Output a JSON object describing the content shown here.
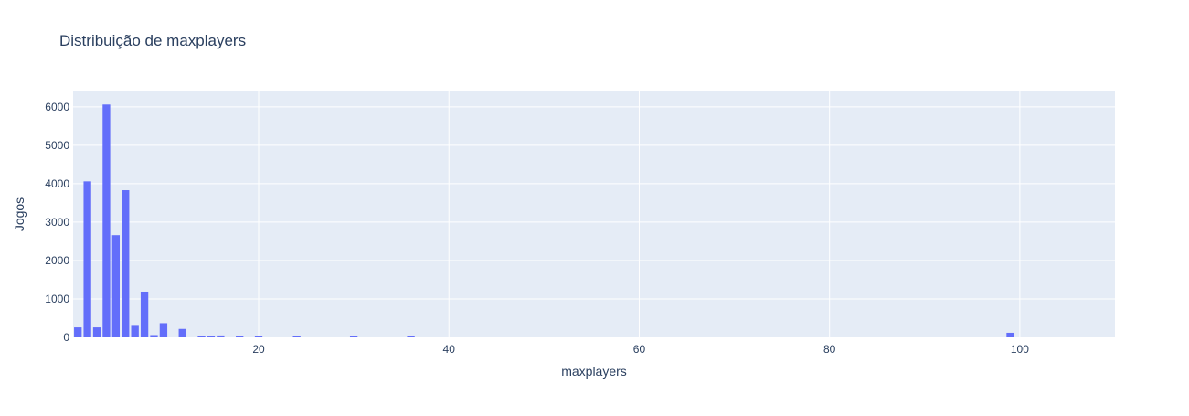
{
  "chart_data": {
    "type": "bar",
    "title": "Distribuição de maxplayers",
    "xlabel": "maxplayers",
    "ylabel": "Jogos",
    "xlim": [
      0.5,
      110
    ],
    "ylim": [
      0,
      6400
    ],
    "xticks": [
      20,
      40,
      60,
      80,
      100
    ],
    "yticks": [
      0,
      1000,
      2000,
      3000,
      4000,
      5000,
      6000
    ],
    "grid": true,
    "legend": "none",
    "x": [
      1,
      2,
      3,
      4,
      5,
      6,
      7,
      8,
      9,
      10,
      12,
      14,
      15,
      16,
      18,
      20,
      24,
      30,
      36,
      99
    ],
    "values": [
      260,
      4060,
      260,
      6060,
      2660,
      3830,
      300,
      1190,
      60,
      370,
      220,
      10,
      20,
      50,
      10,
      40,
      10,
      10,
      10,
      120
    ]
  },
  "colors": {
    "bar": "#636efa",
    "plot_bg": "#e5ecf6",
    "grid": "#ffffff",
    "text": "#2a3f5f",
    "tick_text": "#2a3f5f"
  }
}
